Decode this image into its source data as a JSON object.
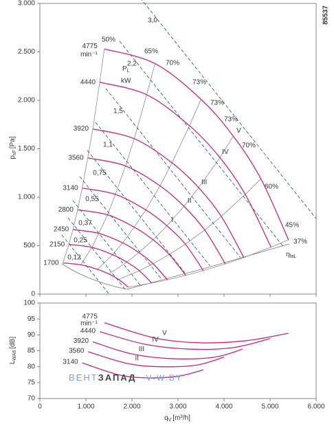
{
  "chart_data": [
    {
      "type": "line",
      "code": "85537",
      "ylabel": {
        "symbol": "p",
        "sub": "sF",
        "unit": "[Pa]"
      },
      "xlim": [
        0,
        6000
      ],
      "ylim": [
        0,
        3000
      ],
      "yticks": [
        0,
        500,
        {
          "value": 1000,
          "label": "1.000"
        },
        {
          "value": 1500,
          "label": "1.500"
        },
        {
          "value": 2000,
          "label": "2.000"
        },
        {
          "value": 2500,
          "label": "2.500"
        },
        {
          "value": 3000,
          "label": "3.000"
        }
      ],
      "speed_unit": "min⁻¹",
      "series": [
        {
          "name": "4775",
          "curve_label": "V",
          "color": "#c4257c",
          "x": [
            1400,
            2500,
            3500,
            4200,
            4800,
            5400
          ],
          "values": [
            2530,
            2380,
            2010,
            1630,
            1190,
            560
          ]
        },
        {
          "name": "4440",
          "curve_label": "IV",
          "color": "#c4257c",
          "x": [
            1300,
            2320,
            3250,
            3910,
            4460,
            5020
          ],
          "values": [
            2187,
            2058,
            1738,
            1409,
            1029,
            484
          ]
        },
        {
          "name": "3920",
          "curve_label": "III",
          "color": "#c4257c",
          "x": [
            1150,
            2050,
            2870,
            3450,
            3940,
            4430
          ],
          "values": [
            1705,
            1604,
            1355,
            1098,
            802,
            377
          ]
        },
        {
          "name": "3560",
          "curve_label": "II",
          "color": "#c4257c",
          "x": [
            1040,
            1860,
            2610,
            3130,
            3580,
            4030
          ],
          "values": [
            1406,
            1323,
            1117,
            906,
            661,
            311
          ]
        },
        {
          "name": "3140",
          "curve_label": "I",
          "color": "#c4257c",
          "x": [
            920,
            1640,
            2300,
            2760,
            3160,
            3550
          ],
          "values": [
            1094,
            1029,
            869,
            705,
            515,
            242
          ]
        },
        {
          "name": "2800",
          "color": "#c4257c",
          "x": [
            820,
            1470,
            2050,
            2460,
            2810,
            3170
          ],
          "values": [
            870,
            818,
            691,
            560,
            409,
            193
          ]
        },
        {
          "name": "2450",
          "color": "#c4257c",
          "x": [
            720,
            1280,
            1800,
            2150,
            2460,
            2770
          ],
          "values": [
            666,
            627,
            529,
            429,
            313,
            147
          ]
        },
        {
          "name": "2150",
          "color": "#c4257c",
          "x": [
            630,
            1130,
            1580,
            1890,
            2160,
            2430
          ],
          "values": [
            513,
            482,
            407,
            330,
            241,
            114
          ]
        },
        {
          "name": "1700",
          "color": "#c4257c",
          "x": [
            500,
            890,
            1250,
            1500,
            1710,
            1920
          ],
          "values": [
            321,
            302,
            255,
            207,
            151,
            71
          ]
        }
      ],
      "efficiency_labels": [
        "50%",
        "65%",
        "70%",
        "73%",
        "73%",
        "73%",
        "70%",
        "60%",
        "45%",
        "37%"
      ],
      "efficiency_symbol": {
        "symbol": "η",
        "sub": "faL"
      },
      "power_symbol": {
        "symbol": "P",
        "sub": "L",
        "unit": "kW"
      },
      "power_lines": [
        "3,0",
        "2,2",
        "1,5",
        "1,1",
        "0,75",
        "0,55",
        "0,37",
        "0,25",
        "0,12"
      ]
    },
    {
      "type": "line",
      "ylabel": {
        "symbol": "L",
        "sub": "WA6",
        "unit": "[dB]"
      },
      "xlabel": {
        "symbol": "q",
        "sub": "V",
        "unit": "[m³/h]"
      },
      "xlim": [
        0,
        6000
      ],
      "ylim": [
        70,
        100
      ],
      "xticks": [
        0,
        {
          "value": 1000,
          "label": "1.000"
        },
        {
          "value": 2000,
          "label": "2.000"
        },
        {
          "value": 3000,
          "label": "3.000"
        },
        {
          "value": 4000,
          "label": "4.000"
        },
        {
          "value": 5000,
          "label": "5.000"
        },
        {
          "value": 6000,
          "label": "6.000"
        }
      ],
      "yticks": [
        70,
        75,
        80,
        85,
        90,
        95,
        100
      ],
      "speed_unit": "min⁻¹",
      "series": [
        {
          "name": "4775",
          "curve_label": "V",
          "color": "#c4257c",
          "x": [
            1400,
            2500,
            3500,
            4500,
            5400
          ],
          "values": [
            93.8,
            89,
            87.5,
            88.2,
            90.5
          ]
        },
        {
          "name": "4440",
          "curve_label": "IV",
          "color": "#c4257c",
          "x": [
            1300,
            2300,
            3300,
            4200,
            5000
          ],
          "values": [
            91,
            87,
            85.5,
            86,
            88.8
          ]
        },
        {
          "name": "3920",
          "curve_label": "III",
          "color": "#c4257c",
          "x": [
            1150,
            2000,
            2900,
            3800,
            4400
          ],
          "values": [
            87.8,
            84,
            82.5,
            83,
            85.5
          ]
        },
        {
          "name": "3560",
          "curve_label": "II",
          "color": "#c4257c",
          "x": [
            1050,
            1900,
            2600,
            3400,
            4000
          ],
          "values": [
            84.7,
            81,
            80,
            80.5,
            83
          ]
        },
        {
          "name": "3140",
          "color": "#c4257c",
          "x": [
            920,
            1700,
            2300,
            3000,
            3550
          ],
          "values": [
            81.2,
            77.5,
            76.5,
            77,
            79
          ]
        }
      ],
      "watermark": [
        "ВЕНТ",
        "ЗАПАД",
        "V-W.BY"
      ]
    }
  ]
}
